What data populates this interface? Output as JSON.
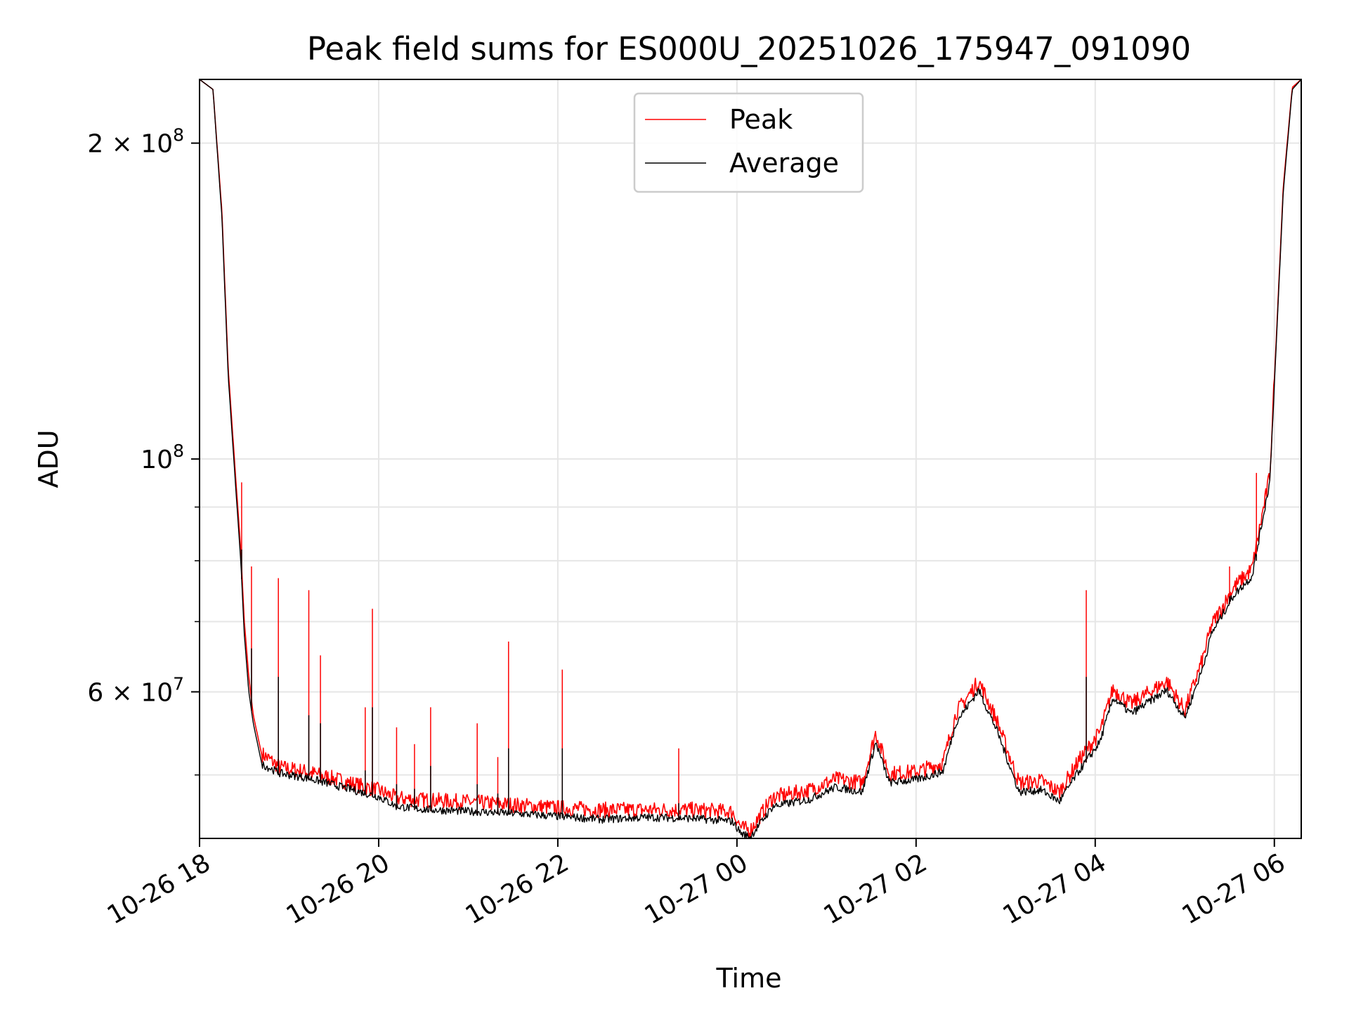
{
  "chart_data": {
    "type": "line",
    "title": "Peak field sums for ES000U_20251026_175947_091090",
    "xlabel": "Time",
    "ylabel": "ADU",
    "yscale": "log",
    "ylim": [
      43500000,
      230000000
    ],
    "xlim_hours": [
      0,
      12.3
    ],
    "x_tick_labels": [
      "10-26 18",
      "10-26 20",
      "10-26 22",
      "10-27 00",
      "10-27 02",
      "10-27 04",
      "10-27 06"
    ],
    "x_tick_hours": [
      0,
      2,
      4,
      6,
      8,
      10,
      12
    ],
    "y_tick_labels": [
      {
        "value": 200000000,
        "mantissa": "2",
        "times": "×",
        "base": "10",
        "exp": "8"
      },
      {
        "value": 100000000,
        "mantissa": "",
        "times": "",
        "base": "10",
        "exp": "8"
      },
      {
        "value": 60000000,
        "mantissa": "6",
        "times": "×",
        "base": "10",
        "exp": "7"
      }
    ],
    "y_minor_ticks": [
      50000000,
      70000000,
      80000000,
      90000000
    ],
    "grid": true,
    "legend": {
      "position": "upper-center",
      "entries": [
        "Peak",
        "Average"
      ]
    },
    "series": [
      {
        "name": "Average",
        "color": "#000000",
        "x": [
          0,
          0.15,
          0.25,
          0.32,
          0.4,
          0.46,
          0.5,
          0.55,
          0.6,
          0.7,
          0.9,
          1.2,
          1.6,
          2.0,
          2.2,
          2.5,
          3.0,
          3.5,
          4.0,
          4.5,
          5.0,
          5.5,
          5.95,
          6.05,
          6.15,
          6.4,
          6.8,
          7.1,
          7.4,
          7.55,
          7.7,
          8.0,
          8.3,
          8.45,
          8.7,
          8.9,
          9.15,
          9.4,
          9.6,
          9.8,
          10.05,
          10.2,
          10.4,
          10.6,
          10.8,
          11.0,
          11.2,
          11.3,
          11.55,
          11.75,
          11.95,
          12.1,
          12.2,
          12.3
        ],
        "y": [
          230000000,
          225000000,
          170000000,
          120000000,
          95000000,
          80000000,
          68000000,
          60000000,
          56000000,
          51000000,
          50000000,
          49500000,
          48500000,
          47500000,
          46500000,
          46200000,
          46000000,
          45800000,
          45500000,
          45200000,
          45400000,
          45300000,
          45000000,
          43800000,
          43500000,
          46500000,
          47200000,
          48500000,
          48000000,
          53500000,
          49000000,
          49300000,
          50200000,
          56000000,
          60000000,
          55000000,
          48000000,
          48200000,
          47000000,
          50000000,
          53500000,
          59000000,
          57000000,
          58500000,
          60000000,
          56500000,
          63000000,
          68000000,
          74000000,
          77000000,
          95000000,
          180000000,
          225000000,
          230000000
        ]
      },
      {
        "name": "Peak",
        "color": "#ff0000",
        "x": [
          0,
          0.15,
          0.25,
          0.32,
          0.4,
          0.46,
          0.5,
          0.55,
          0.6,
          0.7,
          0.9,
          1.2,
          1.6,
          2.0,
          2.2,
          2.5,
          3.0,
          3.5,
          4.0,
          4.5,
          5.0,
          5.5,
          5.95,
          6.05,
          6.15,
          6.4,
          6.8,
          7.1,
          7.4,
          7.55,
          7.7,
          8.0,
          8.3,
          8.45,
          8.7,
          8.9,
          9.15,
          9.4,
          9.6,
          9.8,
          10.05,
          10.2,
          10.4,
          10.6,
          10.8,
          11.0,
          11.2,
          11.3,
          11.55,
          11.75,
          11.95,
          12.1,
          12.2,
          12.3
        ],
        "y": [
          230000000,
          225000000,
          172000000,
          122000000,
          97000000,
          82000000,
          70000000,
          62000000,
          57000000,
          52000000,
          50500000,
          50000000,
          49000000,
          48000000,
          47200000,
          47000000,
          46800000,
          46500000,
          46200000,
          46000000,
          46000000,
          46000000,
          45800000,
          44200000,
          44000000,
          47300000,
          48000000,
          49200000,
          48800000,
          54500000,
          49800000,
          50000000,
          51000000,
          57000000,
          61000000,
          56000000,
          48800000,
          49000000,
          47800000,
          51000000,
          54500000,
          60000000,
          58000000,
          59500000,
          61000000,
          57200000,
          64000000,
          69000000,
          75000000,
          78000000,
          96000000,
          182000000,
          226000000,
          230000000
        ]
      }
    ],
    "spikes": [
      {
        "x": 0.47,
        "y": 95000000,
        "avg": 82000000
      },
      {
        "x": 0.58,
        "y": 79000000,
        "avg": 66000000
      },
      {
        "x": 0.88,
        "y": 77000000,
        "avg": 62000000
      },
      {
        "x": 1.22,
        "y": 75000000,
        "avg": 57000000
      },
      {
        "x": 1.35,
        "y": 65000000,
        "avg": 56000000
      },
      {
        "x": 1.85,
        "y": 58000000,
        "avg": 50500000
      },
      {
        "x": 1.93,
        "y": 72000000,
        "avg": 58000000
      },
      {
        "x": 2.2,
        "y": 55500000,
        "avg": 49000000
      },
      {
        "x": 2.4,
        "y": 53500000,
        "avg": 48500000
      },
      {
        "x": 2.58,
        "y": 58000000,
        "avg": 51000000
      },
      {
        "x": 3.1,
        "y": 56000000,
        "avg": 49000000
      },
      {
        "x": 3.33,
        "y": 52000000,
        "avg": 48000000
      },
      {
        "x": 3.45,
        "y": 67000000,
        "avg": 53000000
      },
      {
        "x": 4.05,
        "y": 63000000,
        "avg": 53000000
      },
      {
        "x": 5.35,
        "y": 53000000,
        "avg": 47000000
      },
      {
        "x": 9.9,
        "y": 75000000,
        "avg": 62000000
      },
      {
        "x": 11.8,
        "y": 97000000,
        "avg": 80000000
      },
      {
        "x": 11.5,
        "y": 79000000,
        "avg": 74000000
      }
    ]
  }
}
